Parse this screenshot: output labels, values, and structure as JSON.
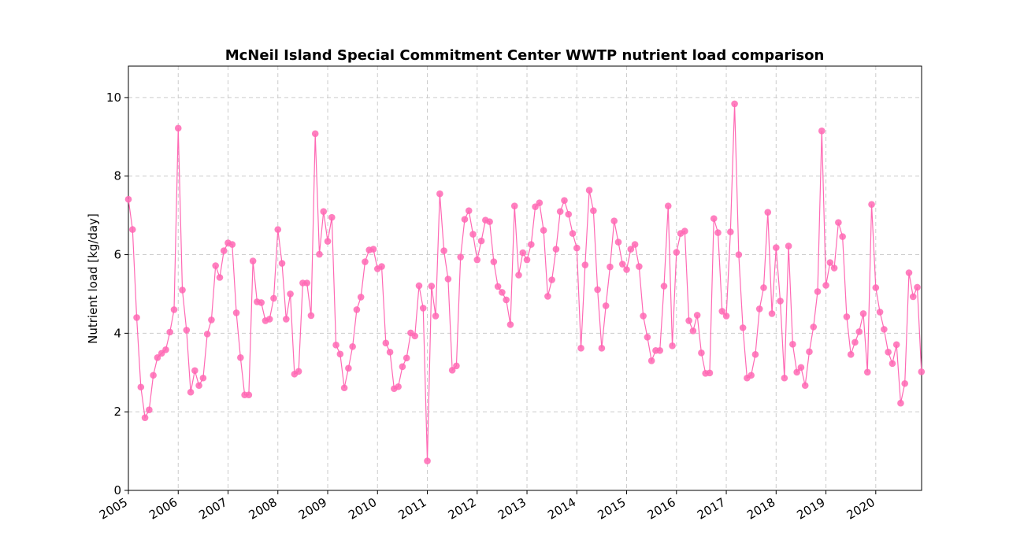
{
  "chart_data": {
    "type": "line",
    "title": "McNeil Island Special Commitment Center WWTP nutrient load comparison",
    "xlabel": "",
    "ylabel": "Nutrient load [kg/day]",
    "xlim": [
      2005.0,
      2020.92
    ],
    "ylim": [
      0,
      10.8
    ],
    "x_ticks": [
      2005,
      2006,
      2007,
      2008,
      2009,
      2010,
      2011,
      2012,
      2013,
      2014,
      2015,
      2016,
      2017,
      2018,
      2019,
      2020
    ],
    "x_tick_labels": [
      "2005",
      "2006",
      "2007",
      "2008",
      "2009",
      "2010",
      "2011",
      "2012",
      "2013",
      "2014",
      "2015",
      "2016",
      "2017",
      "2018",
      "2019",
      "2020"
    ],
    "y_ticks": [
      0,
      2,
      4,
      6,
      8,
      10
    ],
    "y_tick_labels": [
      "0",
      "2",
      "4",
      "6",
      "8",
      "10"
    ],
    "grid": true,
    "series": [
      {
        "name": "Nutrient load",
        "color": "#ff69b4",
        "start_year": 2005,
        "step": "monthly",
        "values": [
          7.41,
          6.64,
          4.4,
          2.63,
          1.85,
          2.05,
          2.93,
          3.38,
          3.49,
          3.58,
          4.03,
          4.6,
          9.22,
          5.1,
          4.08,
          2.5,
          3.05,
          2.67,
          2.86,
          3.98,
          4.34,
          5.72,
          5.42,
          6.1,
          6.3,
          6.26,
          4.52,
          3.38,
          2.43,
          2.43,
          5.84,
          4.8,
          4.78,
          4.32,
          4.36,
          4.89,
          6.64,
          5.78,
          4.36,
          5.0,
          2.96,
          3.03,
          5.28,
          5.28,
          4.45,
          9.08,
          6.01,
          7.1,
          6.34,
          6.95,
          3.7,
          3.47,
          2.61,
          3.11,
          3.66,
          4.6,
          4.92,
          5.82,
          6.12,
          6.14,
          5.64,
          5.7,
          3.75,
          3.52,
          2.59,
          2.64,
          3.15,
          3.37,
          4.01,
          3.93,
          5.21,
          4.64,
          0.75,
          5.2,
          4.44,
          7.55,
          6.1,
          5.38,
          3.06,
          3.17,
          5.94,
          6.9,
          7.12,
          6.52,
          5.87,
          6.35,
          6.88,
          6.84,
          5.82,
          5.19,
          5.04,
          4.85,
          4.22,
          7.24,
          5.48,
          6.05,
          5.87,
          6.26,
          7.22,
          7.32,
          6.62,
          4.94,
          5.36,
          6.14,
          7.1,
          7.38,
          7.03,
          6.54,
          6.17,
          3.62,
          5.74,
          7.64,
          7.12,
          5.11,
          3.62,
          4.7,
          5.69,
          6.86,
          6.32,
          5.76,
          5.62,
          6.14,
          6.26,
          5.7,
          4.44,
          3.9,
          3.3,
          3.56,
          3.56,
          5.2,
          7.24,
          3.68,
          6.06,
          6.54,
          6.6,
          4.32,
          4.06,
          4.46,
          3.5,
          2.98,
          2.99,
          6.92,
          6.56,
          4.56,
          4.44,
          6.58,
          9.84,
          6.0,
          4.14,
          2.86,
          2.93,
          3.46,
          4.62,
          5.16,
          7.08,
          4.5,
          6.18,
          4.82,
          2.86,
          6.22,
          3.72,
          3.01,
          3.13,
          2.67,
          3.53,
          4.16,
          5.06,
          9.15,
          5.22,
          5.8,
          5.66,
          6.82,
          6.46,
          4.42,
          3.46,
          3.77,
          4.04,
          4.5,
          3.01,
          7.28,
          5.16,
          4.54,
          4.1,
          3.52,
          3.23,
          3.71,
          2.22,
          2.72,
          5.54,
          4.93,
          5.17,
          3.02
        ]
      }
    ]
  }
}
